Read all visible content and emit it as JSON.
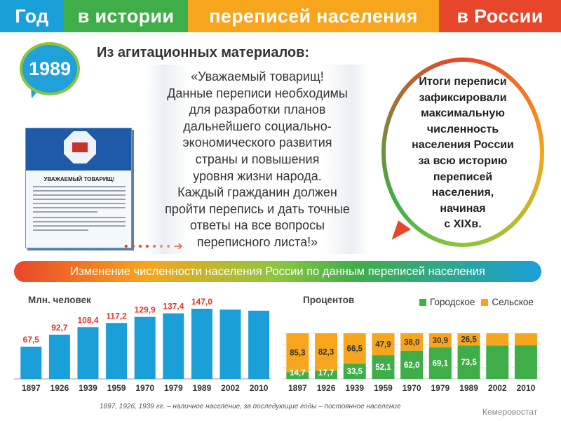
{
  "header": {
    "segments": [
      "Год",
      "в истории",
      "переписей населения",
      "в России"
    ],
    "colors": [
      "#1b9fd8",
      "#3fae49",
      "#f7a51c",
      "#e8462b"
    ]
  },
  "year": "1989",
  "agitation": {
    "title": "Из агитационных материалов:",
    "quote_lines": [
      "«Уважаемый товарищ!",
      "Данные переписи необходимы",
      "для разработки планов",
      "дальнейшего социально-",
      "экономического развития",
      "страны и повышения",
      "уровня жизни народа.",
      "Каждый гражданин должен",
      "пройти перепись и дать точные",
      "ответы на все вопросы",
      "переписного листа!»"
    ]
  },
  "leaflet": {
    "heading": "УВАЖАЕМЫЙ ТОВАРИЩ!"
  },
  "result": {
    "lines": [
      "Итоги переписи",
      "зафиксировали",
      "максимальную",
      "численность",
      "населения России",
      "за всю историю",
      "переписей",
      "населения,",
      "начиная",
      "с XIXв."
    ]
  },
  "banner": "Изменение численности населения России по данным переписей населения",
  "chart_data": [
    {
      "type": "bar",
      "ylabel": "Млн. человек",
      "categories": [
        "1897",
        "1926",
        "1939",
        "1959",
        "1970",
        "1979",
        "1989",
        "2002",
        "2010"
      ],
      "values": [
        67.5,
        92.7,
        108.4,
        117.2,
        129.9,
        137.4,
        147.0,
        145.2,
        142.9
      ],
      "data_labels": [
        "67,5",
        "92,7",
        "108,4",
        "117,2",
        "129,9",
        "137,4",
        "147,0",
        "",
        ""
      ],
      "ylim": [
        0,
        160
      ],
      "colors": {
        "bar": "#1b9fd8",
        "label": "#e0332c"
      },
      "grid": false
    },
    {
      "type": "bar",
      "stacked": true,
      "ylabel": "Процентов",
      "categories": [
        "1897",
        "1926",
        "1939",
        "1959",
        "1970",
        "1979",
        "1989",
        "2002",
        "2010"
      ],
      "series": [
        {
          "name": "Городское",
          "color": "#3fae49",
          "values": [
            14.7,
            17.7,
            33.5,
            52.1,
            62.0,
            69.1,
            73.5,
            73.3,
            73.7
          ],
          "labels": [
            "14,7",
            "17,7",
            "33,5",
            "52,1",
            "62,0",
            "69,1",
            "73,5",
            "",
            ""
          ]
        },
        {
          "name": "Сельское",
          "color": "#f7a51c",
          "values": [
            85.3,
            82.3,
            66.5,
            47.9,
            38.0,
            30.9,
            26.5,
            26.7,
            26.3
          ],
          "labels": [
            "85,3",
            "82,3",
            "66,5",
            "47,9",
            "38,0",
            "30,9",
            "26,5",
            "",
            ""
          ]
        }
      ],
      "ylim": [
        0,
        100
      ],
      "legend": "top-right",
      "grid": true
    }
  ],
  "footnote": "1897, 1926, 1939 гг. – наличное население, за последующие годы – постоянное население",
  "source": "Кемеровостат"
}
